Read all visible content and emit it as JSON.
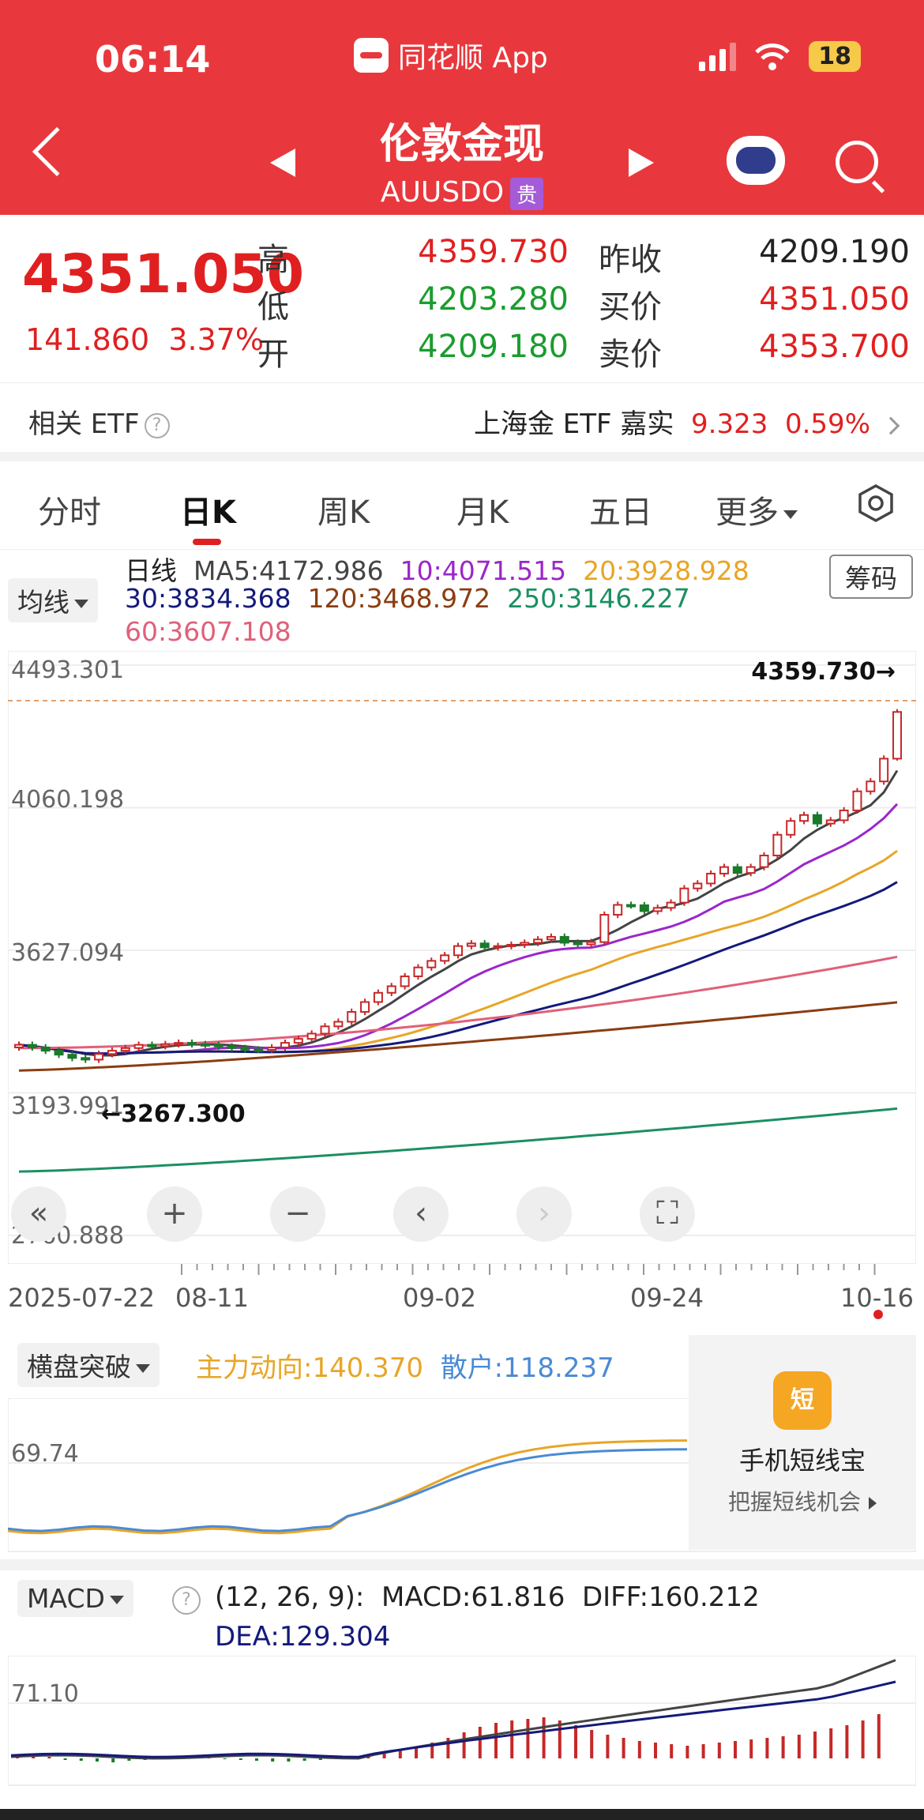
{
  "status_bar": {
    "time": "06:14",
    "app_name": "同花顺 App",
    "battery": "18"
  },
  "header": {
    "title": "伦敦金现",
    "symbol": "AUUSDO",
    "tag": "贵"
  },
  "quote": {
    "price": "4351.050",
    "change": "141.860",
    "change_pct": "3.37%",
    "high_label": "高",
    "high": "4359.730",
    "low_label": "低",
    "low": "4203.280",
    "open_label": "开",
    "open": "4209.180",
    "prev_close_label": "昨收",
    "prev_close": "4209.190",
    "bid_label": "买价",
    "bid": "4351.050",
    "ask_label": "卖价",
    "ask": "4353.700"
  },
  "etf": {
    "label": "相关 ETF",
    "name": "上海金 ETF 嘉实",
    "price": "9.323",
    "pct": "0.59%"
  },
  "tabs": [
    {
      "label": "分时"
    },
    {
      "label": "日K"
    },
    {
      "label": "周K"
    },
    {
      "label": "月K"
    },
    {
      "label": "五日"
    },
    {
      "label": "更多"
    }
  ],
  "ma": {
    "dropdown": "均线",
    "title": "日线",
    "ma5": "MA5:4172.986",
    "ma10": "10:4071.515",
    "ma20": "20:3928.928",
    "ma30": "30:3834.368",
    "ma120": "120:3468.972",
    "ma250": "250:3146.227",
    "ma60": "60:3607.108",
    "chips_button": "筹码",
    "colors": {
      "ma5": "#444444",
      "ma10": "#9b27c9",
      "ma20": "#e8a526",
      "ma30": "#141a7a",
      "ma60": "#e0607a",
      "ma120": "#8b3d12",
      "ma250": "#1c8f62"
    }
  },
  "kchart_labels": {
    "y_top": "4493.301",
    "y_2": "4060.198",
    "y_3": "3627.094",
    "y_4": "3193.991",
    "y_bottom": "2760.888",
    "high_marker": "4359.730→",
    "low_marker": "←3267.300",
    "dates": [
      "2025-07-22",
      "08-11",
      "09-02",
      "09-24",
      "10-16"
    ]
  },
  "nav_buttons": [
    "«",
    "+",
    "−",
    "‹",
    "›",
    "⛶"
  ],
  "indicator1": {
    "dropdown": "横盘突破",
    "main": "主力动向:140.370",
    "retail": "散户:118.237",
    "y_label": "69.74"
  },
  "promo": {
    "icon_text": "短",
    "title": "手机短线宝",
    "subtitle": "把握短线机会"
  },
  "macd": {
    "dropdown": "MACD",
    "params": "(12, 26, 9):",
    "macd": "MACD:61.816",
    "diff": "DIFF:160.212",
    "dea": "DEA:129.304",
    "y_label": "71.10"
  },
  "chart_data": {
    "type": "candlestick",
    "x_range": [
      "2025-07-22",
      "2025-10-16"
    ],
    "ylim": [
      2760.888,
      4493.301
    ],
    "period_high": 4359.73,
    "period_low": 3267.3,
    "last": {
      "open": 4209.18,
      "high": 4359.73,
      "low": 4203.28,
      "close": 4351.05
    },
    "close_values": [
      3340,
      3332,
      3322,
      3310,
      3300,
      3295,
      3312,
      3322,
      3330,
      3340,
      3336,
      3342,
      3346,
      3342,
      3340,
      3335,
      3330,
      3326,
      3325,
      3332,
      3346,
      3358,
      3374,
      3396,
      3410,
      3440,
      3470,
      3498,
      3518,
      3548,
      3575,
      3595,
      3612,
      3640,
      3648,
      3636,
      3640,
      3644,
      3650,
      3660,
      3668,
      3650,
      3645,
      3652,
      3735,
      3765,
      3764,
      3746,
      3756,
      3772,
      3815,
      3830,
      3860,
      3880,
      3862,
      3880,
      3915,
      3978,
      4020,
      4038,
      4012,
      4022,
      4052,
      4110,
      4140,
      4209.19,
      4351.05
    ],
    "moving_averages": {
      "MA5": 4172.986,
      "MA10": 4071.515,
      "MA20": 3928.928,
      "MA30": 3834.368,
      "MA60": 3607.108,
      "MA120": 3468.972,
      "MA250": 3146.227
    }
  }
}
